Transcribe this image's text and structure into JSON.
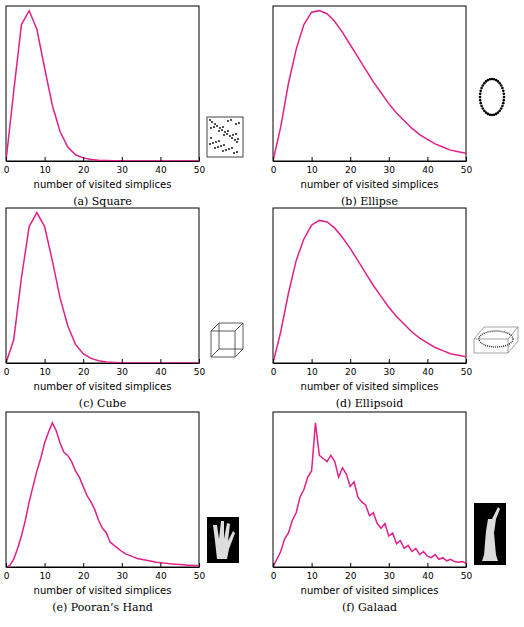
{
  "chart_data": [
    {
      "type": "line",
      "title": "(a) Square",
      "x_label": "number of visited simplices",
      "color": "#e0218a",
      "xlim": [
        0,
        50
      ],
      "xticks": [
        0,
        10,
        20,
        30,
        40,
        50
      ],
      "ylim": [
        0,
        1
      ],
      "tick_labels": "x",
      "x": [
        0,
        2,
        4,
        6,
        8,
        10,
        12,
        14,
        16,
        18,
        20,
        22,
        24,
        26,
        28,
        30,
        32,
        34,
        36,
        38,
        40,
        42,
        44,
        46,
        48,
        50
      ],
      "values": [
        0,
        0.45,
        0.88,
        0.97,
        0.85,
        0.6,
        0.36,
        0.19,
        0.09,
        0.04,
        0.02,
        0.01,
        0.005,
        0.003,
        0.002,
        0.001,
        0,
        0,
        0,
        0,
        0,
        0,
        0,
        0,
        0,
        0
      ]
    },
    {
      "type": "line",
      "title": "(b) Ellipse",
      "x_label": "number of visited simplices",
      "color": "#e0218a",
      "xlim": [
        0,
        50
      ],
      "xticks": [
        0,
        10,
        20,
        30,
        40,
        50
      ],
      "ylim": [
        0,
        1
      ],
      "tick_labels": "x",
      "x": [
        0,
        2,
        4,
        6,
        8,
        10,
        12,
        14,
        16,
        18,
        20,
        22,
        24,
        26,
        28,
        30,
        32,
        34,
        36,
        38,
        40,
        42,
        44,
        46,
        48,
        50
      ],
      "values": [
        0,
        0.22,
        0.5,
        0.72,
        0.88,
        0.96,
        0.97,
        0.95,
        0.9,
        0.83,
        0.75,
        0.67,
        0.59,
        0.51,
        0.44,
        0.37,
        0.31,
        0.26,
        0.21,
        0.17,
        0.14,
        0.11,
        0.09,
        0.07,
        0.06,
        0.05
      ]
    },
    {
      "type": "line",
      "title": "(c) Cube",
      "x_label": "number of visited simplices",
      "color": "#e0218a",
      "xlim": [
        0,
        50
      ],
      "xticks": [
        0,
        10,
        20,
        30,
        40,
        50
      ],
      "ylim": [
        0,
        1
      ],
      "tick_labels": "x",
      "x": [
        0,
        2,
        4,
        6,
        8,
        10,
        12,
        14,
        16,
        18,
        20,
        22,
        24,
        26,
        28,
        30,
        32,
        34,
        36,
        38,
        40,
        42,
        44,
        46,
        48,
        50
      ],
      "values": [
        0,
        0.15,
        0.55,
        0.88,
        0.97,
        0.88,
        0.66,
        0.42,
        0.24,
        0.12,
        0.06,
        0.03,
        0.015,
        0.007,
        0.004,
        0.002,
        0,
        0,
        0,
        0,
        0,
        0,
        0,
        0,
        0,
        0
      ]
    },
    {
      "type": "line",
      "title": "(d) Ellipsoid",
      "x_label": "number of visited simplices",
      "color": "#e0218a",
      "xlim": [
        0,
        50
      ],
      "xticks": [
        0,
        10,
        20,
        30,
        40,
        50
      ],
      "ylim": [
        0,
        1
      ],
      "tick_labels": "x",
      "x": [
        0,
        2,
        4,
        6,
        8,
        10,
        12,
        14,
        16,
        18,
        20,
        22,
        24,
        26,
        28,
        30,
        32,
        34,
        36,
        38,
        40,
        42,
        44,
        46,
        48,
        50
      ],
      "values": [
        0,
        0.2,
        0.45,
        0.66,
        0.8,
        0.89,
        0.92,
        0.91,
        0.87,
        0.81,
        0.74,
        0.66,
        0.58,
        0.5,
        0.43,
        0.36,
        0.3,
        0.25,
        0.2,
        0.16,
        0.13,
        0.1,
        0.08,
        0.06,
        0.05,
        0.04
      ]
    },
    {
      "type": "line",
      "title": "(e) Pooran’s Hand",
      "x_label": "number of visited simplices",
      "color": "#e0218a",
      "xlim": [
        0,
        50
      ],
      "xticks": [
        0,
        10,
        20,
        30,
        40,
        50
      ],
      "ylim": [
        0,
        1
      ],
      "tick_labels": "x",
      "x": [
        0,
        1,
        2,
        3,
        4,
        5,
        6,
        7,
        8,
        9,
        10,
        11,
        12,
        13,
        14,
        15,
        16,
        17,
        18,
        19,
        20,
        21,
        22,
        23,
        24,
        25,
        26,
        27,
        28,
        29,
        30,
        31,
        32,
        33,
        34,
        35,
        36,
        37,
        38,
        39,
        40,
        41,
        42,
        43,
        44,
        45,
        46,
        47,
        48,
        49,
        50
      ],
      "values": [
        0,
        0.01,
        0.05,
        0.12,
        0.2,
        0.3,
        0.42,
        0.52,
        0.62,
        0.7,
        0.8,
        0.87,
        0.93,
        0.88,
        0.8,
        0.74,
        0.72,
        0.68,
        0.62,
        0.58,
        0.52,
        0.46,
        0.42,
        0.37,
        0.3,
        0.25,
        0.22,
        0.16,
        0.14,
        0.12,
        0.1,
        0.085,
        0.075,
        0.065,
        0.055,
        0.05,
        0.045,
        0.04,
        0.035,
        0.03,
        0.028,
        0.025,
        0.022,
        0.02,
        0.018,
        0.016,
        0.014,
        0.012,
        0.011,
        0.01,
        0.008
      ]
    },
    {
      "type": "line",
      "title": "(f) Galaad",
      "x_label": "number of visited simplices",
      "color": "#e0218a",
      "xlim": [
        0,
        50
      ],
      "xticks": [
        0,
        10,
        20,
        30,
        40,
        50
      ],
      "ylim": [
        0,
        1
      ],
      "tick_labels": "x",
      "x": [
        0,
        1,
        2,
        3,
        4,
        5,
        6,
        7,
        8,
        9,
        10,
        11,
        12,
        13,
        14,
        15,
        16,
        17,
        18,
        19,
        20,
        21,
        22,
        23,
        24,
        25,
        26,
        27,
        28,
        29,
        30,
        31,
        32,
        33,
        34,
        35,
        36,
        37,
        38,
        39,
        40,
        41,
        42,
        43,
        44,
        45,
        46,
        47,
        48,
        49,
        50
      ],
      "values": [
        0,
        0.05,
        0.1,
        0.18,
        0.22,
        0.3,
        0.35,
        0.45,
        0.5,
        0.58,
        0.62,
        0.93,
        0.72,
        0.7,
        0.68,
        0.72,
        0.68,
        0.58,
        0.64,
        0.6,
        0.52,
        0.55,
        0.45,
        0.42,
        0.4,
        0.33,
        0.35,
        0.28,
        0.25,
        0.28,
        0.2,
        0.22,
        0.15,
        0.17,
        0.12,
        0.14,
        0.1,
        0.12,
        0.08,
        0.1,
        0.07,
        0.06,
        0.08,
        0.05,
        0.06,
        0.04,
        0.05,
        0.035,
        0.03,
        0.035,
        0.025
      ]
    }
  ]
}
